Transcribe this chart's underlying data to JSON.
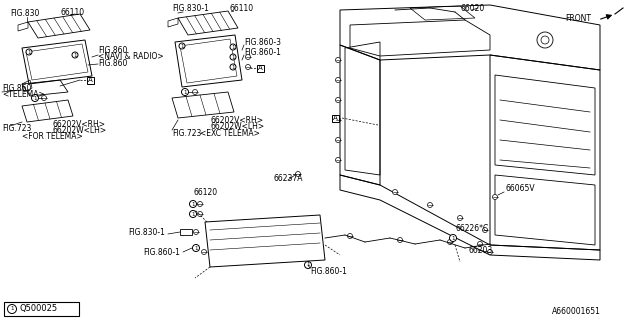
{
  "bg_color": "#ffffff",
  "line_color": "#000000",
  "gray_color": "#888888",
  "labels": {
    "fig830": "FIG.830",
    "fig830_1_top": "FIG.830-1",
    "fig860_navi": "FIG.860",
    "fig860_navi2": "<NAVI & RADIO>",
    "fig860_a": "FIG.860",
    "fig860_telema": "FIG.860",
    "fig860_telema2": "<TELEMA>",
    "fig860_3": "FIG.860-3",
    "fig860_1_mid": "FIG.860-1",
    "fig860_1_bot1": "FIG.860-1",
    "fig860_1_bot2": "FIG.860-1",
    "fig723_left": "FIG.723",
    "fig723_mid": "FIG.723",
    "for_telema": "<FOR TELEMA>",
    "exc_telema": "<EXC TELEMA>",
    "n66110_left": "66110",
    "n66110_mid": "66110",
    "n66020": "66020",
    "n66202v_rh_left": "66202V<RH>",
    "n66202w_lh_left": "66202W<LH>",
    "n66202v_rh_mid": "66202V<RH>",
    "n66202w_lh_mid": "66202W<LH>",
    "n66237a": "66237A",
    "n66120": "66120",
    "n66065v": "66065V",
    "n66226c": "66226*C",
    "n66203": "66203",
    "front": "FRONT",
    "part_num": "Q500025",
    "part_num2": "A660001651"
  }
}
